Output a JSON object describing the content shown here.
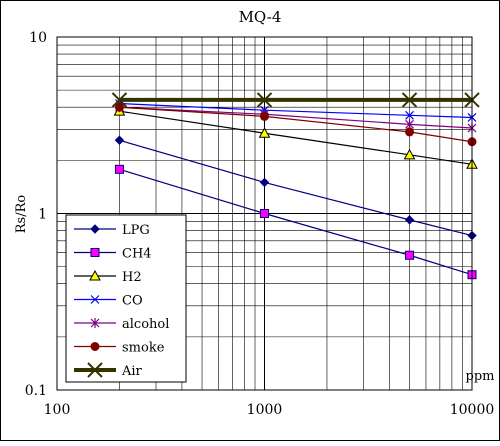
{
  "chart_data": {
    "type": "line",
    "title": "MQ-4",
    "xlabel": "ppm",
    "ylabel": "Rs/Ro",
    "xscale": "log",
    "yscale": "log",
    "xlim": [
      100,
      10000
    ],
    "ylim": [
      0.1,
      10
    ],
    "xticks": [
      100,
      1000,
      10000
    ],
    "xtick_labels": [
      "100",
      "1000",
      "10000"
    ],
    "yticks": [
      0.1,
      1,
      10
    ],
    "ytick_labels": [
      "0.1",
      "1",
      "10"
    ],
    "grid": true,
    "legend_position": "bottom-left",
    "series": [
      {
        "name": "LPG",
        "color": "#000080",
        "marker": "diamond",
        "x": [
          200,
          1000,
          5000,
          10000
        ],
        "y": [
          2.6,
          1.5,
          0.92,
          0.75
        ]
      },
      {
        "name": "CH4",
        "color": "#ff00ff",
        "line_color": "#000080",
        "marker": "square",
        "x": [
          200,
          1000,
          5000,
          10000
        ],
        "y": [
          1.78,
          1.0,
          0.58,
          0.45
        ]
      },
      {
        "name": "H2",
        "color": "#ffff00",
        "line_color": "#000000",
        "marker": "triangle",
        "x": [
          200,
          1000,
          5000,
          10000
        ],
        "y": [
          3.8,
          2.85,
          2.15,
          1.9
        ]
      },
      {
        "name": "CO",
        "color": "#0000ff",
        "marker": "x",
        "x": [
          200,
          1000,
          5000,
          10000
        ],
        "y": [
          4.2,
          3.85,
          3.6,
          3.5
        ]
      },
      {
        "name": "alcohol",
        "color": "#800080",
        "marker": "star",
        "x": [
          200,
          1000,
          5000,
          10000
        ],
        "y": [
          4.0,
          3.65,
          3.2,
          3.05
        ]
      },
      {
        "name": "smoke",
        "color": "#800000",
        "marker": "circle",
        "x": [
          200,
          1000,
          5000,
          10000
        ],
        "y": [
          4.0,
          3.55,
          2.9,
          2.55
        ]
      },
      {
        "name": "Air",
        "color": "#333300",
        "marker": "x-large",
        "x": [
          200,
          1000,
          5000,
          10000
        ],
        "y": [
          4.4,
          4.4,
          4.4,
          4.4
        ]
      }
    ]
  }
}
